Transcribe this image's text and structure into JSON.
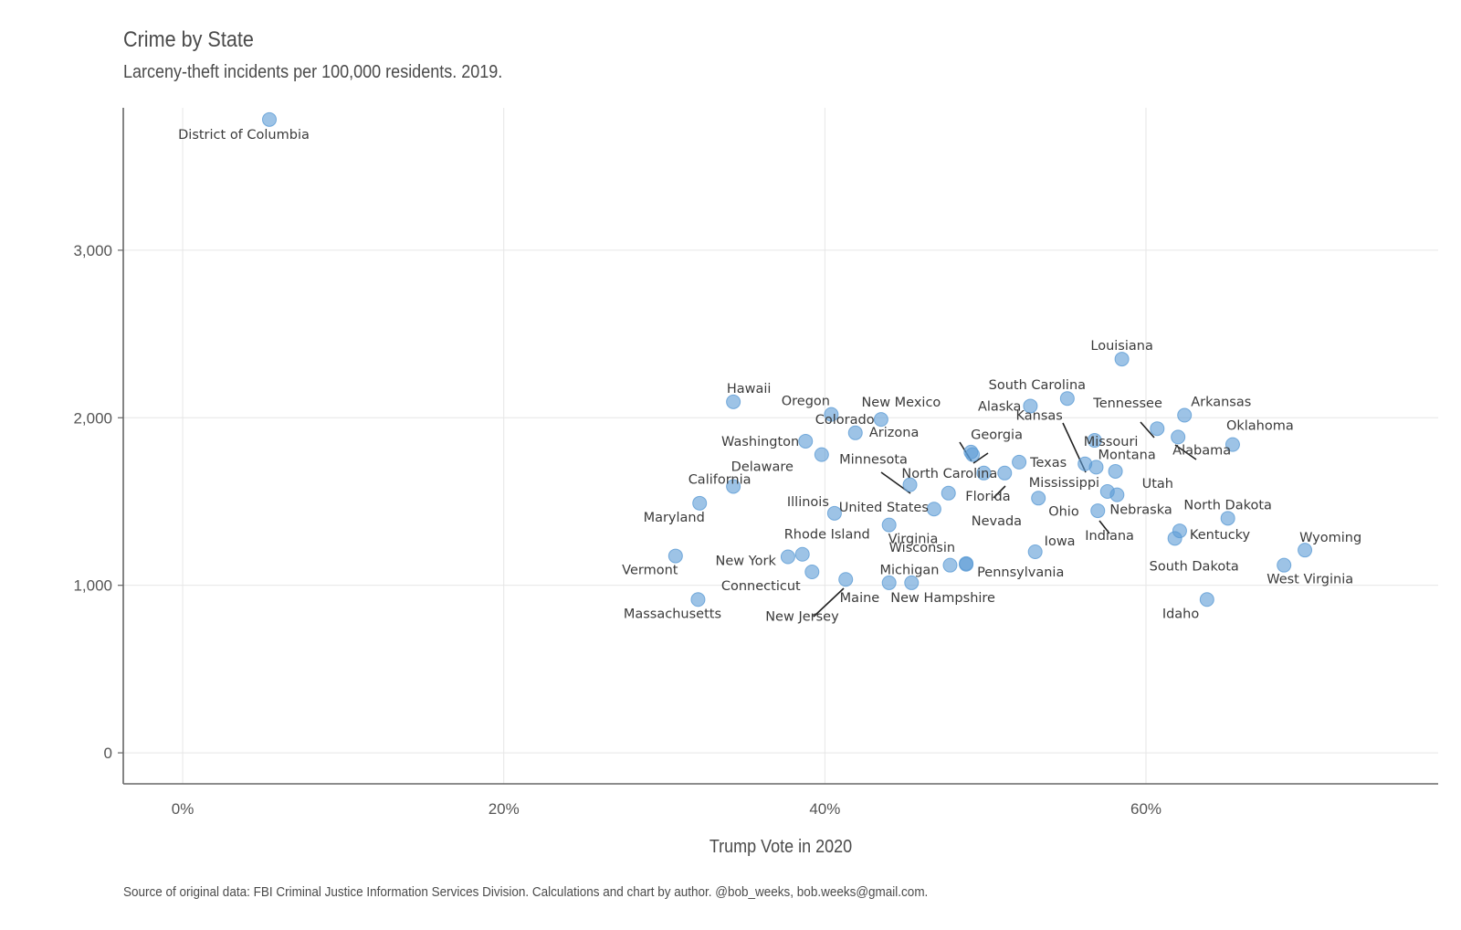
{
  "chart_data": {
    "type": "scatter",
    "title": "Crime by State",
    "subtitle": "Larceny-theft incidents per 100,000 residents. 2019.",
    "xlabel": "Trump Vote in 2020",
    "ylabel": "",
    "caption": "Source of original data: FBI Criminal Justice Information Services Division. Calculations and chart by author. @bob_weeks, bob.weeks@gmail.com.",
    "xlim": [
      -3.7,
      78.2
    ],
    "ylim": [
      -185,
      3850
    ],
    "x_ticks": [
      0,
      20,
      40,
      60
    ],
    "x_tick_labels": [
      "0%",
      "20%",
      "40%",
      "60%"
    ],
    "y_ticks": [
      0,
      1000,
      2000,
      3000
    ],
    "y_tick_labels": [
      "0",
      "1,000",
      "2,000",
      "3,000"
    ],
    "grid": true,
    "point_color": "#5b9bd5",
    "points": [
      {
        "label": "District of Columbia",
        "x": 5.4,
        "y": 3780
      },
      {
        "label": "Louisiana",
        "x": 58.5,
        "y": 2350
      },
      {
        "label": "South Carolina",
        "x": 55.1,
        "y": 2115
      },
      {
        "label": "Hawaii",
        "x": 34.3,
        "y": 2095
      },
      {
        "label": "Alaska",
        "x": 52.8,
        "y": 2070
      },
      {
        "label": "Oregon",
        "x": 40.4,
        "y": 2020
      },
      {
        "label": "Arkansas",
        "x": 62.4,
        "y": 2015
      },
      {
        "label": "New Mexico",
        "x": 43.5,
        "y": 1990
      },
      {
        "label": "Tennessee",
        "x": 60.7,
        "y": 1935
      },
      {
        "label": "Colorado",
        "x": 41.9,
        "y": 1910
      },
      {
        "label": "Alabama",
        "x": 62.0,
        "y": 1885
      },
      {
        "label": "Missouri",
        "x": 56.8,
        "y": 1865
      },
      {
        "label": "Washington",
        "x": 38.8,
        "y": 1860
      },
      {
        "label": "Oklahoma",
        "x": 65.4,
        "y": 1840
      },
      {
        "label": "Arizona",
        "x": 49.1,
        "y": 1795
      },
      {
        "label": "Georgia",
        "x": 49.2,
        "y": 1780
      },
      {
        "label": "Delaware",
        "x": 39.8,
        "y": 1780
      },
      {
        "label": "Texas",
        "x": 52.1,
        "y": 1735
      },
      {
        "label": "Kansas",
        "x": 56.2,
        "y": 1725
      },
      {
        "label": "Montana",
        "x": 56.9,
        "y": 1705
      },
      {
        "label": "Utah",
        "x": 58.1,
        "y": 1680
      },
      {
        "label": "North Carolina",
        "x": 49.9,
        "y": 1670
      },
      {
        "label": "Florida",
        "x": 51.2,
        "y": 1670
      },
      {
        "label": "Minnesota",
        "x": 45.3,
        "y": 1600
      },
      {
        "label": "California",
        "x": 34.3,
        "y": 1590
      },
      {
        "label": "Mississippi",
        "x": 57.6,
        "y": 1560
      },
      {
        "label": "Nevada",
        "x": 47.7,
        "y": 1550
      },
      {
        "label": "Nebraska",
        "x": 58.2,
        "y": 1540
      },
      {
        "label": "Ohio",
        "x": 53.3,
        "y": 1520
      },
      {
        "label": "Maryland",
        "x": 32.2,
        "y": 1490
      },
      {
        "label": "United States",
        "x": 46.8,
        "y": 1455
      },
      {
        "label": "Indiana",
        "x": 57.0,
        "y": 1445
      },
      {
        "label": "Illinois",
        "x": 40.6,
        "y": 1430
      },
      {
        "label": "North Dakota",
        "x": 65.1,
        "y": 1400
      },
      {
        "label": "Virginia",
        "x": 44.0,
        "y": 1360
      },
      {
        "label": "Kentucky",
        "x": 62.1,
        "y": 1325
      },
      {
        "label": "South Dakota",
        "x": 61.8,
        "y": 1280
      },
      {
        "label": "Wyoming",
        "x": 69.9,
        "y": 1210
      },
      {
        "label": "Iowa",
        "x": 53.1,
        "y": 1200
      },
      {
        "label": "Rhode Island",
        "x": 38.6,
        "y": 1185
      },
      {
        "label": "Vermont",
        "x": 30.7,
        "y": 1175
      },
      {
        "label": "New York",
        "x": 37.7,
        "y": 1170
      },
      {
        "label": "Wisconsin",
        "x": 48.8,
        "y": 1130
      },
      {
        "label": "Pennsylvania",
        "x": 48.8,
        "y": 1125
      },
      {
        "label": "Michigan",
        "x": 47.8,
        "y": 1120
      },
      {
        "label": "West Virginia",
        "x": 68.6,
        "y": 1120
      },
      {
        "label": "Connecticut",
        "x": 39.2,
        "y": 1080
      },
      {
        "label": "New Jersey",
        "x": 41.3,
        "y": 1035
      },
      {
        "label": "Maine",
        "x": 44.0,
        "y": 1015
      },
      {
        "label": "New Hampshire",
        "x": 45.4,
        "y": 1015
      },
      {
        "label": "Massachusetts",
        "x": 32.1,
        "y": 915
      },
      {
        "label": "Idaho",
        "x": 63.8,
        "y": 915
      }
    ]
  }
}
